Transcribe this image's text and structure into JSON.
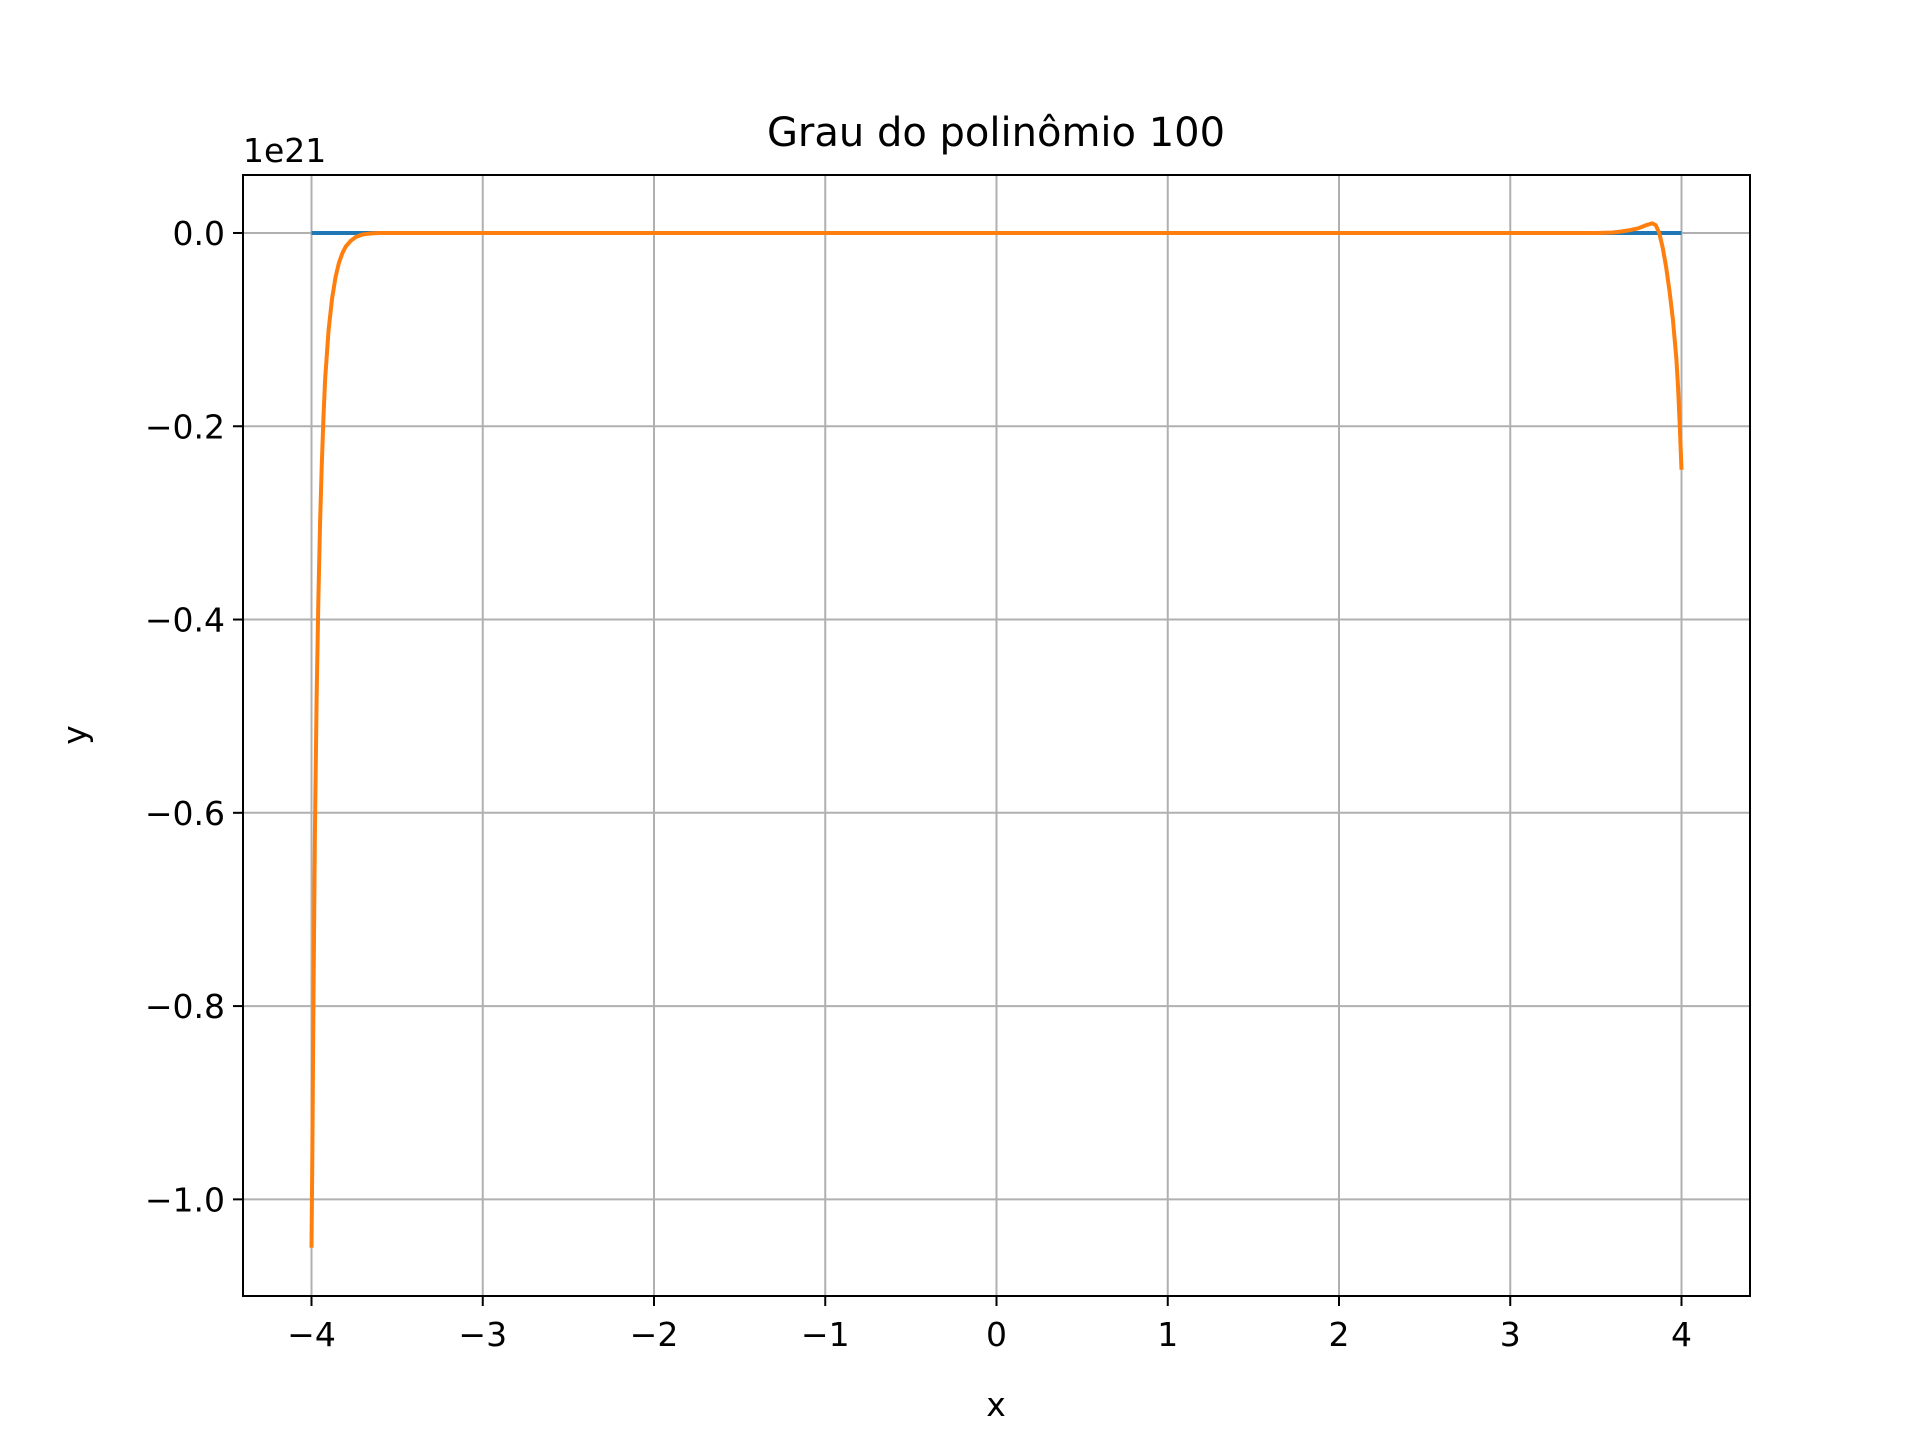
{
  "chart_data": {
    "type": "line",
    "title": "Grau do polinômio 100",
    "xlabel": "x",
    "ylabel": "y",
    "y_scale_label": "1e21",
    "xlim": [
      -4.4,
      4.4
    ],
    "ylim": [
      -1.1,
      0.06
    ],
    "xticks": [
      -4,
      -3,
      -2,
      -1,
      0,
      1,
      2,
      3,
      4
    ],
    "xtick_labels": [
      "−4",
      "−3",
      "−2",
      "−1",
      "0",
      "1",
      "2",
      "3",
      "4"
    ],
    "yticks": [
      0.0,
      -0.2,
      -0.4,
      -0.6,
      -0.8,
      -1.0
    ],
    "ytick_labels": [
      "0.0",
      "−0.2",
      "−0.4",
      "−0.6",
      "−0.8",
      "−1.0"
    ],
    "grid": true,
    "series": [
      {
        "color": "#1f77b4",
        "x": [
          -4,
          -3,
          -2,
          -1,
          0,
          1,
          2,
          3,
          4
        ],
        "y": [
          0,
          0,
          0,
          0,
          0,
          0,
          0,
          0,
          0
        ]
      },
      {
        "color": "#ff7f0e",
        "x": [
          -4.0,
          -3.995,
          -3.99,
          -3.985,
          -3.98,
          -3.97,
          -3.96,
          -3.95,
          -3.94,
          -3.93,
          -3.92,
          -3.9,
          -3.88,
          -3.86,
          -3.84,
          -3.82,
          -3.8,
          -3.77,
          -3.74,
          -3.7,
          -3.65,
          -3.6,
          -3.5,
          -3.0,
          -2.0,
          -1.0,
          0.0,
          1.0,
          2.0,
          3.0,
          3.5,
          3.6,
          3.65,
          3.7,
          3.75,
          3.8,
          3.83,
          3.85,
          3.87,
          3.89,
          3.91,
          3.93,
          3.95,
          3.97,
          3.98,
          3.99,
          4.0
        ],
        "y": [
          -1.05,
          -0.95,
          -0.83,
          -0.72,
          -0.62,
          -0.48,
          -0.38,
          -0.3,
          -0.24,
          -0.19,
          -0.15,
          -0.1,
          -0.068,
          -0.046,
          -0.031,
          -0.021,
          -0.014,
          -0.008,
          -0.004,
          -0.0015,
          -0.0004,
          0.0,
          0.0,
          0.0,
          0.0,
          0.0,
          0.0,
          0.0,
          0.0,
          0.0,
          0.0,
          0.0005,
          0.0015,
          0.003,
          0.005,
          0.0085,
          0.01,
          0.008,
          0.0,
          -0.015,
          -0.035,
          -0.06,
          -0.09,
          -0.13,
          -0.16,
          -0.2,
          -0.245
        ]
      }
    ]
  }
}
